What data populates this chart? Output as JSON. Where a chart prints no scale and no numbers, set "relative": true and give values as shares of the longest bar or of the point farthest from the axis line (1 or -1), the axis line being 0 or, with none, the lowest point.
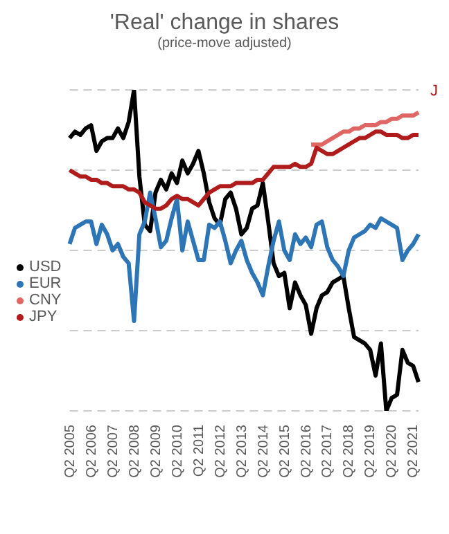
{
  "chart_data": {
    "type": "line",
    "title": "'Real' change in shares",
    "subtitle": "(price-move adjusted)",
    "relative": true,
    "grid": "y",
    "legend": "left",
    "marker": "none",
    "line_style": "solid",
    "annotations": [
      "J"
    ],
    "categories": [
      "Q2 2005",
      null,
      null,
      null,
      "Q2 2006",
      null,
      null,
      null,
      "Q2 2007",
      null,
      null,
      null,
      "Q2 2008",
      null,
      null,
      null,
      "Q2 2009",
      null,
      null,
      null,
      "Q2 2010",
      null,
      null,
      null,
      "Q2 2011",
      null,
      null,
      null,
      "Q2 2012",
      null,
      null,
      null,
      "Q2 2013",
      null,
      null,
      null,
      "Q2 2014",
      null,
      null,
      null,
      "Q2 2015",
      null,
      null,
      null,
      "Q2 2016",
      null,
      null,
      null,
      "Q2 2017",
      null,
      null,
      null,
      "Q2 2018",
      null,
      null,
      null,
      "Q2 2019",
      null,
      null,
      null,
      "Q2 2020",
      null,
      null,
      null,
      "Q2 2021",
      null
    ],
    "series": [
      {
        "name": "USD",
        "color": "#000000",
        "values": [
          0.85,
          0.87,
          0.86,
          0.88,
          0.89,
          0.81,
          0.84,
          0.85,
          0.85,
          0.88,
          0.85,
          0.9,
          1,
          0.73,
          0.58,
          0.56,
          0.68,
          0.72,
          0.69,
          0.74,
          0.71,
          0.78,
          0.74,
          0.77,
          0.81,
          0.74,
          0.65,
          0.6,
          0.58,
          0.66,
          0.68,
          0.63,
          0.55,
          0.57,
          0.63,
          0.64,
          0.71,
          0.59,
          0.46,
          0.42,
          0.43,
          0.32,
          0.4,
          0.36,
          0.33,
          0.24,
          0.32,
          0.36,
          0.37,
          0.4,
          0.41,
          0.42,
          0.32,
          0.23,
          0.22,
          0.21,
          0.19,
          0.11,
          0.21,
          0,
          0.04,
          0.05,
          0.19,
          0.15,
          0.14,
          0.09
        ]
      },
      {
        "name": "EUR",
        "color": "#2e75b6",
        "values": [
          0.52,
          0.57,
          0.58,
          0.59,
          0.59,
          0.52,
          0.58,
          0.55,
          0.5,
          0.52,
          0.48,
          0.46,
          0.28,
          0.55,
          0.59,
          0.68,
          0.6,
          0.51,
          0.53,
          0.6,
          0.66,
          0.5,
          0.59,
          0.53,
          0.47,
          0.47,
          0.58,
          0.57,
          0.59,
          0.53,
          0.46,
          0.5,
          0.53,
          0.47,
          0.43,
          0.4,
          0.36,
          0.45,
          0.53,
          0.59,
          0.5,
          0.47,
          0.55,
          0.52,
          0.54,
          0.51,
          0.58,
          0.59,
          0.51,
          0.47,
          0.45,
          0.42,
          0.5,
          0.54,
          0.55,
          0.56,
          0.58,
          0.57,
          0.6,
          0.59,
          0.58,
          0.57,
          0.47,
          0.5,
          0.52,
          0.55
        ]
      },
      {
        "name": "CNY",
        "color": "#e06666",
        "values": [
          null,
          null,
          null,
          null,
          null,
          null,
          null,
          null,
          null,
          null,
          null,
          null,
          null,
          null,
          null,
          null,
          null,
          null,
          null,
          null,
          null,
          null,
          null,
          null,
          null,
          null,
          null,
          null,
          null,
          null,
          null,
          null,
          null,
          null,
          null,
          null,
          null,
          null,
          null,
          null,
          null,
          null,
          null,
          null,
          null,
          0.83,
          0.83,
          0.83,
          0.84,
          0.85,
          0.86,
          0.87,
          0.87,
          0.88,
          0.88,
          0.89,
          0.89,
          0.89,
          0.9,
          0.9,
          0.91,
          0.91,
          0.92,
          0.92,
          0.92,
          0.93
        ]
      },
      {
        "name": "JPY",
        "color": "#b01c1c",
        "values": [
          0.75,
          0.74,
          0.73,
          0.73,
          0.72,
          0.72,
          0.71,
          0.71,
          0.7,
          0.7,
          0.7,
          0.69,
          0.69,
          0.68,
          0.65,
          0.64,
          0.63,
          0.63,
          0.64,
          0.66,
          0.67,
          0.66,
          0.66,
          0.65,
          0.64,
          0.66,
          0.68,
          0.69,
          0.7,
          0.7,
          0.7,
          0.71,
          0.71,
          0.71,
          0.71,
          0.72,
          0.72,
          0.74,
          0.76,
          0.76,
          0.76,
          0.76,
          0.77,
          0.76,
          0.76,
          0.77,
          0.82,
          0.81,
          0.8,
          0.8,
          0.81,
          0.82,
          0.83,
          0.84,
          0.85,
          0.85,
          0.86,
          0.87,
          0.87,
          0.86,
          0.86,
          0.86,
          0.85,
          0.85,
          0.86,
          0.86
        ]
      }
    ]
  }
}
